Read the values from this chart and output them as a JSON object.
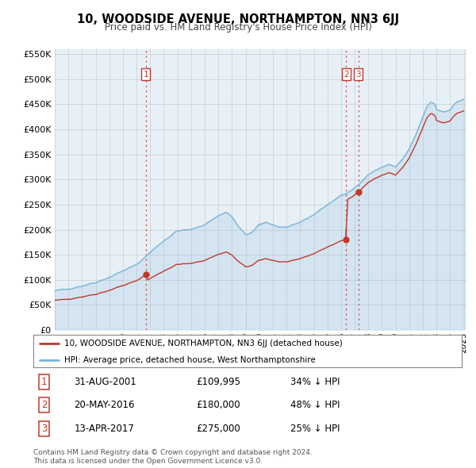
{
  "title": "10, WOODSIDE AVENUE, NORTHAMPTON, NN3 6JJ",
  "subtitle": "Price paid vs. HM Land Registry's House Price Index (HPI)",
  "legend_line1": "10, WOODSIDE AVENUE, NORTHAMPTON, NN3 6JJ (detached house)",
  "legend_line2": "HPI: Average price, detached house, West Northamptonshire",
  "footer1": "Contains HM Land Registry data © Crown copyright and database right 2024.",
  "footer2": "This data is licensed under the Open Government Licence v3.0.",
  "transactions": [
    {
      "num": 1,
      "date": "31-AUG-2001",
      "price": "£109,995",
      "pct": "34% ↓ HPI",
      "year": 2001.67
    },
    {
      "num": 2,
      "date": "20-MAY-2016",
      "price": "£180,000",
      "pct": "48% ↓ HPI",
      "year": 2016.38
    },
    {
      "num": 3,
      "date": "13-APR-2017",
      "price": "£275,000",
      "pct": "25% ↓ HPI",
      "year": 2017.28
    }
  ],
  "transaction_prices": [
    109995,
    180000,
    275000
  ],
  "hpi_color": "#7ab5d8",
  "price_color": "#c0392b",
  "vline_color": "#c0392b",
  "ylim": [
    0,
    560000
  ],
  "yticks": [
    0,
    50000,
    100000,
    150000,
    200000,
    250000,
    300000,
    350000,
    400000,
    450000,
    500000,
    550000
  ],
  "bg_color": "#ffffff",
  "grid_color": "#cccccc",
  "hpi_fill_alpha": 0.18
}
